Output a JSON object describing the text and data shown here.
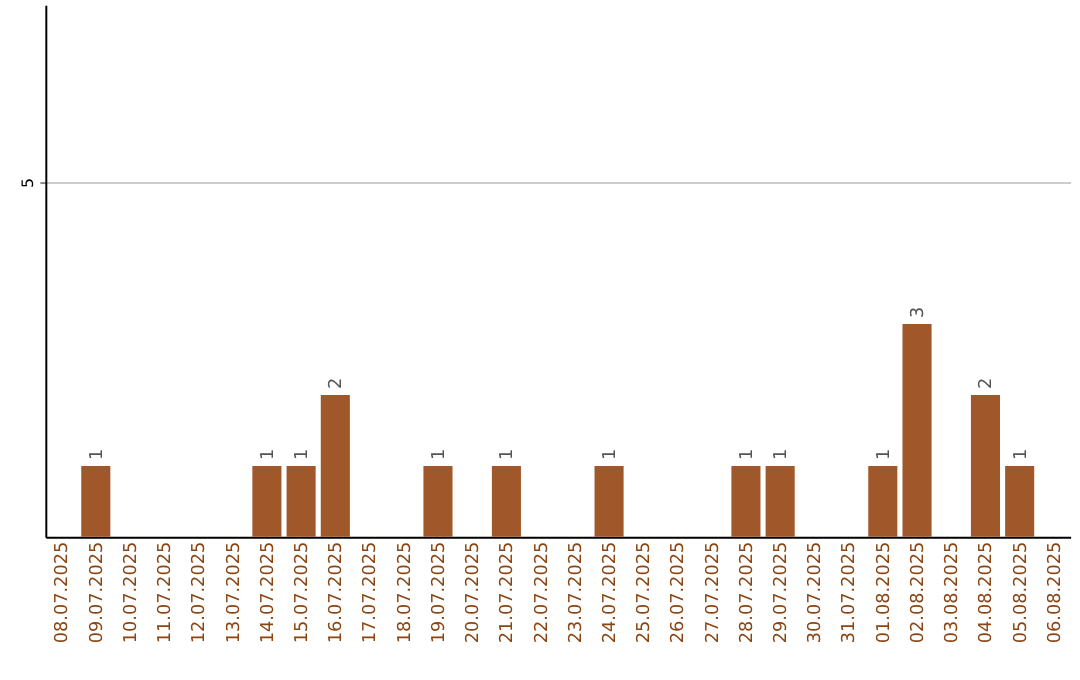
{
  "chart_data": {
    "type": "bar",
    "categories": [
      "08.07.2025",
      "09.07.2025",
      "10.07.2025",
      "11.07.2025",
      "12.07.2025",
      "13.07.2025",
      "14.07.2025",
      "15.07.2025",
      "16.07.2025",
      "17.07.2025",
      "18.07.2025",
      "19.07.2025",
      "20.07.2025",
      "21.07.2025",
      "22.07.2025",
      "23.07.2025",
      "24.07.2025",
      "25.07.2025",
      "26.07.2025",
      "27.07.2025",
      "28.07.2025",
      "29.07.2025",
      "30.07.2025",
      "31.07.2025",
      "01.08.2025",
      "02.08.2025",
      "03.08.2025",
      "04.08.2025",
      "05.08.2025",
      "06.08.2025"
    ],
    "values": [
      0,
      1,
      0,
      0,
      0,
      0,
      1,
      1,
      2,
      0,
      0,
      1,
      0,
      1,
      0,
      0,
      1,
      0,
      0,
      0,
      1,
      1,
      0,
      0,
      1,
      3,
      0,
      2,
      1,
      0
    ],
    "value_labels": [
      null,
      "1",
      null,
      null,
      null,
      null,
      "1",
      "1",
      "2",
      null,
      null,
      "1",
      null,
      "1",
      null,
      null,
      "1",
      null,
      null,
      null,
      "1",
      "1",
      null,
      null,
      "1",
      "3",
      null,
      "2",
      "1",
      null
    ],
    "color": "#a0582a",
    "ylim": [
      0,
      7.5
    ],
    "yticks": [
      5
    ],
    "grid": "y"
  }
}
